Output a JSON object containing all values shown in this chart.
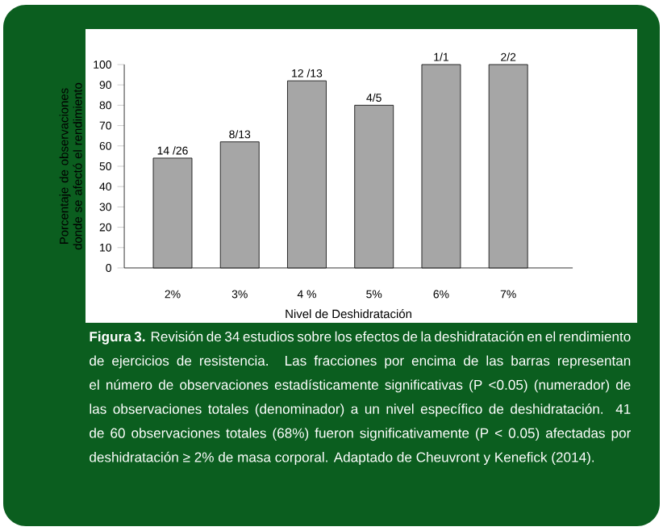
{
  "chart_data": {
    "type": "bar",
    "xlabel": "Nivel de Deshidratación",
    "ylabel": "Porcentaje de observaciones donde se afectó el rendimiento",
    "categories": [
      "2%",
      "3%",
      "4 %",
      "5%",
      "6%",
      "7%"
    ],
    "values": [
      54,
      62,
      92,
      80,
      100,
      100
    ],
    "color": "#a6a6a6",
    "ylim": [
      0,
      100
    ],
    "yticks": [
      0,
      10,
      20,
      30,
      40,
      50,
      60,
      70,
      80,
      90,
      100
    ],
    "grid": false,
    "annotations": [
      {
        "text": "14 /26",
        "x": "2%",
        "y": 54
      },
      {
        "text": "8/13",
        "x": "3%",
        "y": 62
      },
      {
        "text": "12 /13",
        "x": "4 %",
        "y": 92
      },
      {
        "text": "4/5",
        "x": "5%",
        "y": 80
      },
      {
        "text": "1/1",
        "x": "6%",
        "y": 100
      },
      {
        "text": "2/2",
        "x": "7%",
        "y": 100
      },
      "**Figura 3.**  Revisión de 34 estudios sobre los efectos de la deshidratación en el rendimiento de ejercicios de resistencia. Las fracciones por encima de las barras representan el número de observaciones estadísticamente significativas (P <0.05) (numerador)  de las observaciones totales (denominador) a un nivel específico de deshidratación. 41 de 60 observaciones totales (68%) fueron significativamente (P < 0.05) afectadas por deshidratación ≥ 2% de masa corporal. Adaptado de Cheuvront y Kenefick (2014)."
    ]
  }
}
